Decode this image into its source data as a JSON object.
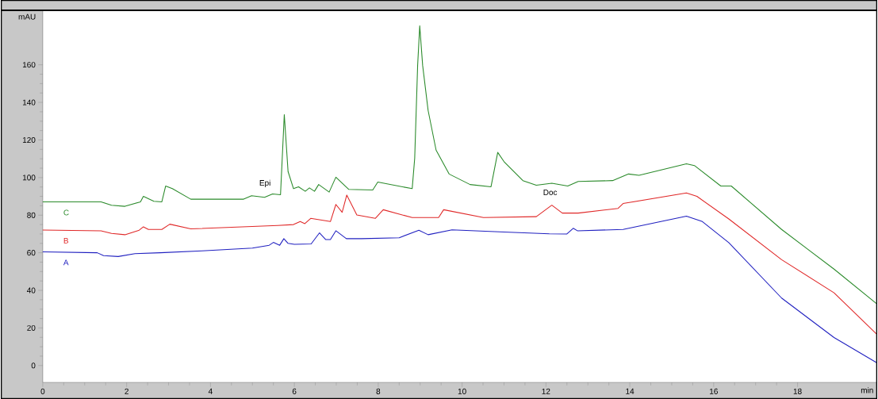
{
  "chart_data": {
    "type": "line",
    "xlabel": "min",
    "ylabel": "mAU",
    "xlim": [
      0,
      19.9
    ],
    "ylim": [
      -9,
      189
    ],
    "xticks": [
      0,
      2,
      4,
      6,
      8,
      10,
      12,
      14,
      16,
      18
    ],
    "yticks": [
      0,
      20,
      40,
      60,
      80,
      100,
      120,
      140,
      160
    ],
    "grid": false,
    "legend": false,
    "marker": "none",
    "line_style": "solid",
    "annotations": [
      {
        "text": "Epi",
        "x": 5.3,
        "y": 89.5
      },
      {
        "text": "Doc",
        "x": 12.1,
        "y": 85.3
      }
    ],
    "series": [
      {
        "name": "A",
        "color": "#2020c0",
        "x": [
          0,
          1.3,
          1.45,
          1.8,
          2.2,
          2.8,
          3.8,
          5.0,
          5.4,
          5.5,
          5.65,
          5.75,
          5.85,
          6.0,
          6.4,
          6.6,
          6.75,
          6.86,
          6.99,
          7.24,
          7.6,
          8.5,
          8.97,
          9.19,
          9.76,
          11.0,
          12.08,
          12.5,
          12.65,
          12.75,
          13.84,
          15.35,
          15.73,
          16.36,
          17.62,
          18.87,
          19.88
        ],
        "values": [
          60.5,
          60,
          58.5,
          58,
          59.5,
          60,
          61,
          62.5,
          64,
          65.5,
          64,
          67.5,
          65,
          64.5,
          64.7,
          70.6,
          67,
          67,
          71.7,
          67.5,
          67.5,
          68,
          72,
          69.6,
          72.2,
          71,
          70.1,
          70,
          73,
          71.7,
          72.4,
          79.5,
          76.6,
          65.4,
          35.9,
          14.9,
          1.6
        ]
      },
      {
        "name": "B",
        "color": "#e02828",
        "x": [
          0,
          1.39,
          1.64,
          1.96,
          2.3,
          2.4,
          2.52,
          2.84,
          3.03,
          3.53,
          5.6,
          5.98,
          6.14,
          6.25,
          6.39,
          6.86,
          6.99,
          7.14,
          7.25,
          7.49,
          7.93,
          8.12,
          8.81,
          9.44,
          9.56,
          10.51,
          11.77,
          12.14,
          12.39,
          12.77,
          13.72,
          13.84,
          15.35,
          15.6,
          16.36,
          17.62,
          18.87,
          19.88
        ],
        "values": [
          72.1,
          71.7,
          70.3,
          69.6,
          72,
          73.8,
          72.4,
          72.4,
          75.2,
          72.7,
          74.5,
          75,
          76.6,
          75.5,
          78.3,
          76.6,
          85.7,
          81.5,
          90.7,
          80.1,
          78.3,
          82.9,
          78.7,
          78.7,
          82.9,
          78.7,
          79.2,
          85.3,
          81.1,
          81.1,
          83.6,
          86.2,
          91.8,
          90,
          78,
          56.3,
          38.7,
          16.9
        ]
      },
      {
        "name": "C",
        "color": "#2a8a2a",
        "x": [
          0,
          1.39,
          1.64,
          1.96,
          2.33,
          2.4,
          2.65,
          2.84,
          2.93,
          3.09,
          3.53,
          4.79,
          4.98,
          5.29,
          5.48,
          5.67,
          5.76,
          5.85,
          5.98,
          6.1,
          6.26,
          6.36,
          6.48,
          6.58,
          6.83,
          6.99,
          7.3,
          7.87,
          7.99,
          8.81,
          8.87,
          8.94,
          8.99,
          9.06,
          9.19,
          9.38,
          9.69,
          10.19,
          10.69,
          10.85,
          11.01,
          11.45,
          11.77,
          12.14,
          12.52,
          12.77,
          13.59,
          13.97,
          14.22,
          15.35,
          15.54,
          16.17,
          16.42,
          17.62,
          18.87,
          19.88
        ],
        "values": [
          87.1,
          87.1,
          85.3,
          84.7,
          87.1,
          90,
          87.4,
          87.1,
          95.5,
          94.1,
          88.5,
          88.5,
          90.3,
          89.5,
          91.3,
          90.9,
          133.5,
          103.2,
          94.1,
          95.1,
          92.7,
          94.5,
          92.7,
          96.3,
          92.3,
          100.2,
          93.7,
          93.4,
          97.6,
          94.1,
          110.3,
          159.6,
          180.7,
          159.6,
          135.7,
          114.6,
          101.9,
          96.3,
          95.1,
          113.4,
          108.2,
          98.4,
          95.9,
          97,
          95.5,
          97.9,
          98.4,
          101.9,
          101.2,
          107.3,
          106.4,
          95.5,
          95.5,
          72.4,
          51.3,
          33
        ]
      }
    ]
  }
}
